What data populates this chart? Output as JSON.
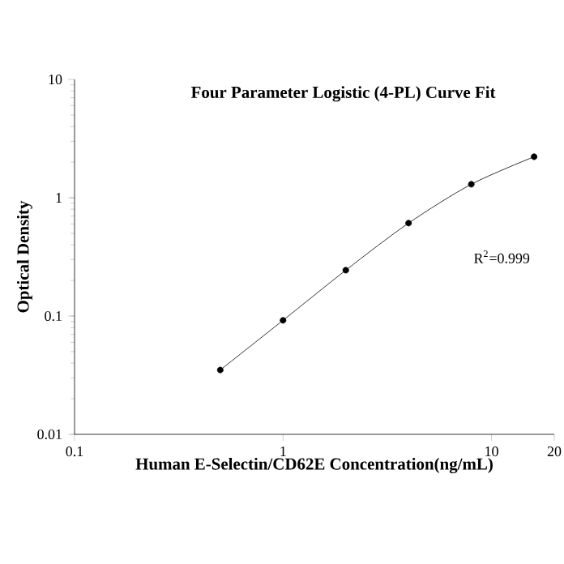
{
  "chart_data": {
    "type": "line",
    "title": "Four Parameter Logistic (4-PL) Curve Fit",
    "xlabel": "Human E-Selectin/CD62E Concentration(ng/mL)",
    "ylabel": "Optical Density",
    "x": [
      0.5,
      1,
      2,
      4,
      8,
      16
    ],
    "series": [
      {
        "color": "#000000",
        "values": [
          0.035,
          0.092,
          0.244,
          0.61,
          1.3,
          2.22
        ]
      }
    ],
    "log": "xy",
    "xlim": [
      0.1,
      20
    ],
    "ylim": [
      0.01,
      10
    ],
    "xticks": [
      0.1,
      1,
      10,
      20
    ],
    "yticks": [
      0.01,
      0.1,
      1,
      10
    ],
    "marker": "circle",
    "annotations": [
      "R$^{2}$=0.999"
    ]
  }
}
